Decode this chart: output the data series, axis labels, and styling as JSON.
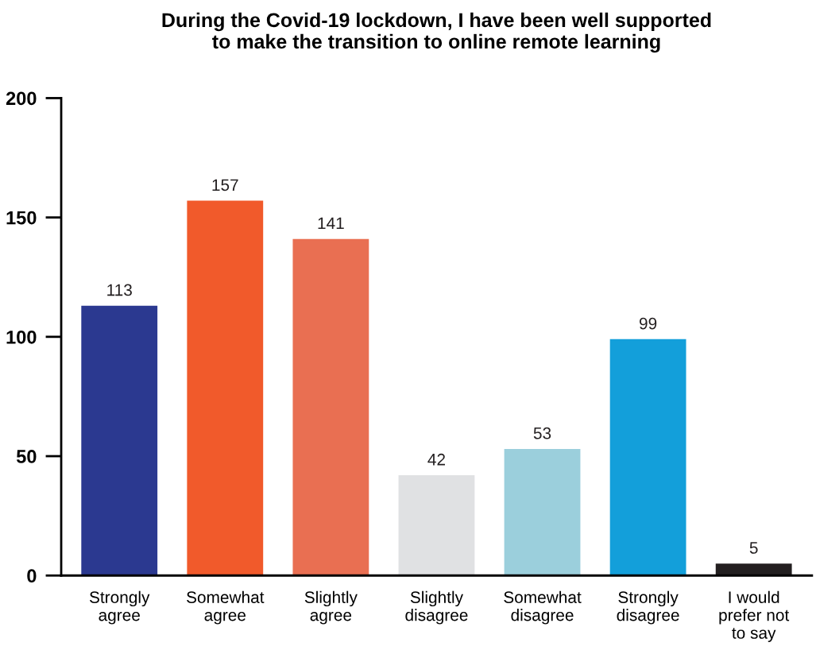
{
  "chart_data": {
    "type": "bar",
    "title": "During the Covid-19 lockdown, I have been well supported\nto make the transition to online remote learning",
    "categories": [
      "Strongly\nagree",
      "Somewhat\nagree",
      "Slightly\nagree",
      "Slightly\ndisagree",
      "Somewhat\ndisagree",
      "Strongly\ndisagree",
      "I would\nprefer not\nto say"
    ],
    "values": [
      113,
      157,
      141,
      42,
      53,
      99,
      5
    ],
    "colors": [
      "#2b3990",
      "#f15a2b",
      "#e96f52",
      "#e0e1e3",
      "#9bcfdc",
      "#139fda",
      "#231f20"
    ],
    "ylim": [
      0,
      200
    ],
    "yticks": [
      0,
      50,
      100,
      150,
      200
    ],
    "data_labels": true,
    "grid": false,
    "legend": false
  }
}
